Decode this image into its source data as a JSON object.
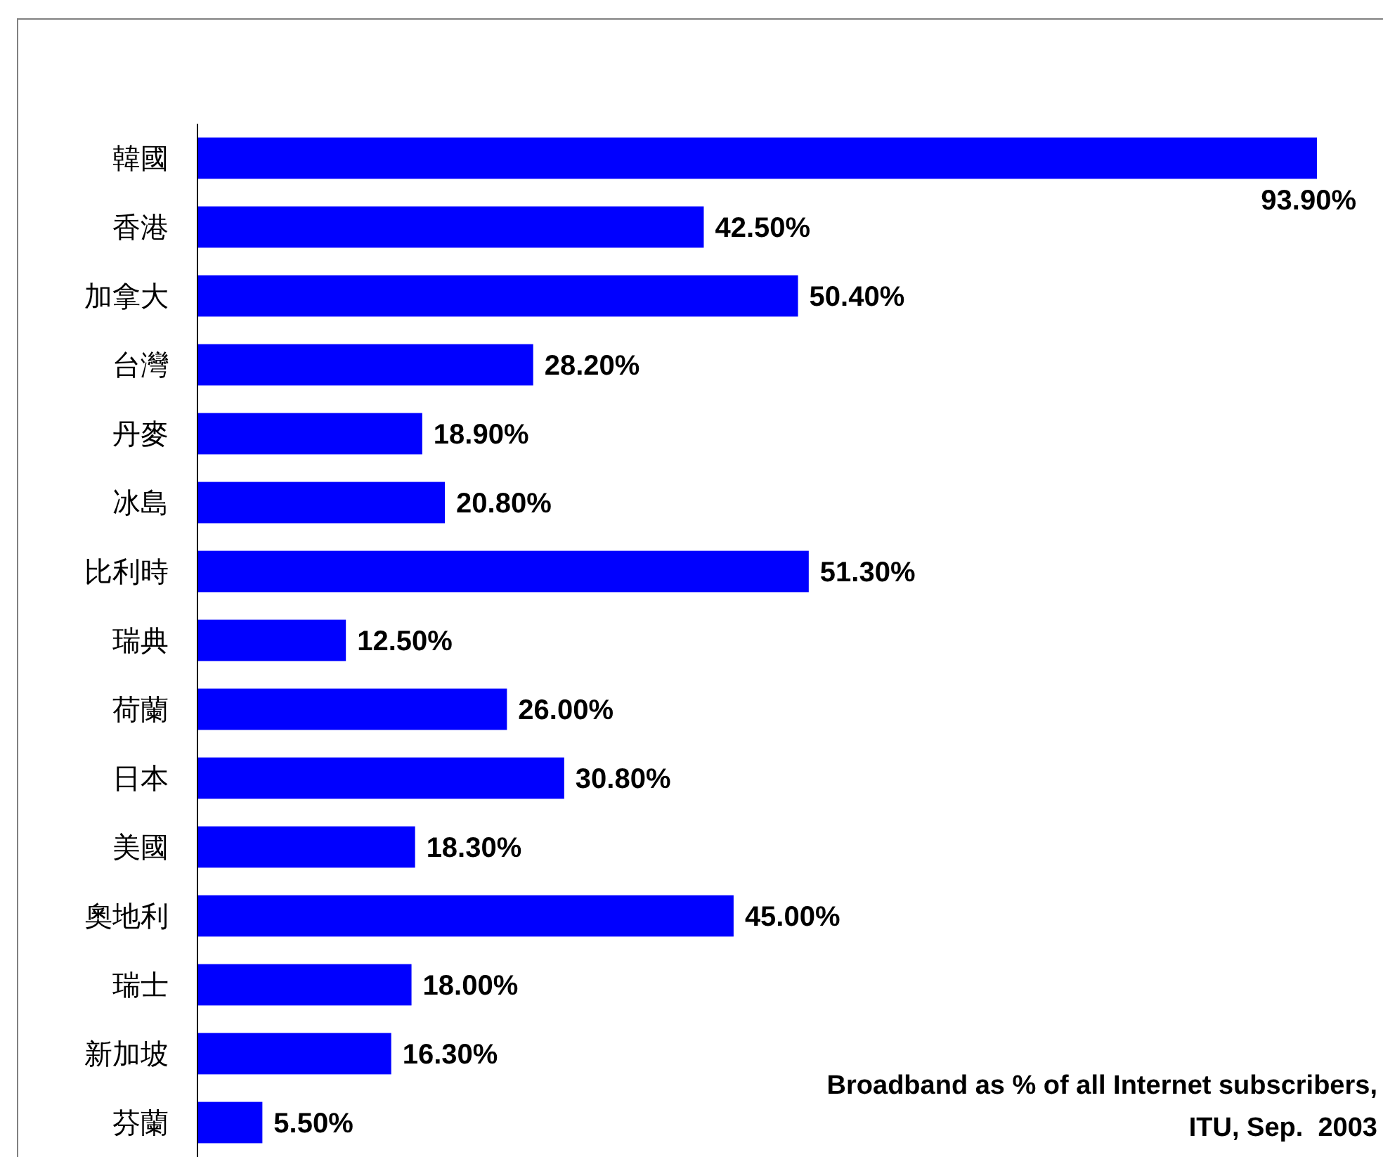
{
  "chart_data": {
    "type": "bar",
    "orientation": "horizontal",
    "categories": [
      "韓國",
      "香港",
      "加拿大",
      "台灣",
      "丹麥",
      "冰島",
      "比利時",
      "瑞典",
      "荷蘭",
      "日本",
      "美國",
      "奧地利",
      "瑞士",
      "新加坡",
      "芬蘭"
    ],
    "values": [
      93.9,
      42.5,
      50.4,
      28.2,
      18.9,
      20.8,
      51.3,
      12.5,
      26.0,
      30.8,
      18.3,
      45.0,
      18.0,
      16.3,
      5.5
    ],
    "value_labels": [
      "93.90%",
      "42.50%",
      "50.40%",
      "28.20%",
      "18.90%",
      "20.80%",
      "51.30%",
      "12.50%",
      "26.00%",
      "30.80%",
      "18.30%",
      "45.00%",
      "18.00%",
      "16.30%",
      "5.50%"
    ],
    "color": "#0000ff",
    "annotations": [
      "Broadband as % of all Internet subscribers,",
      "ITU, Sep.  2003"
    ]
  }
}
